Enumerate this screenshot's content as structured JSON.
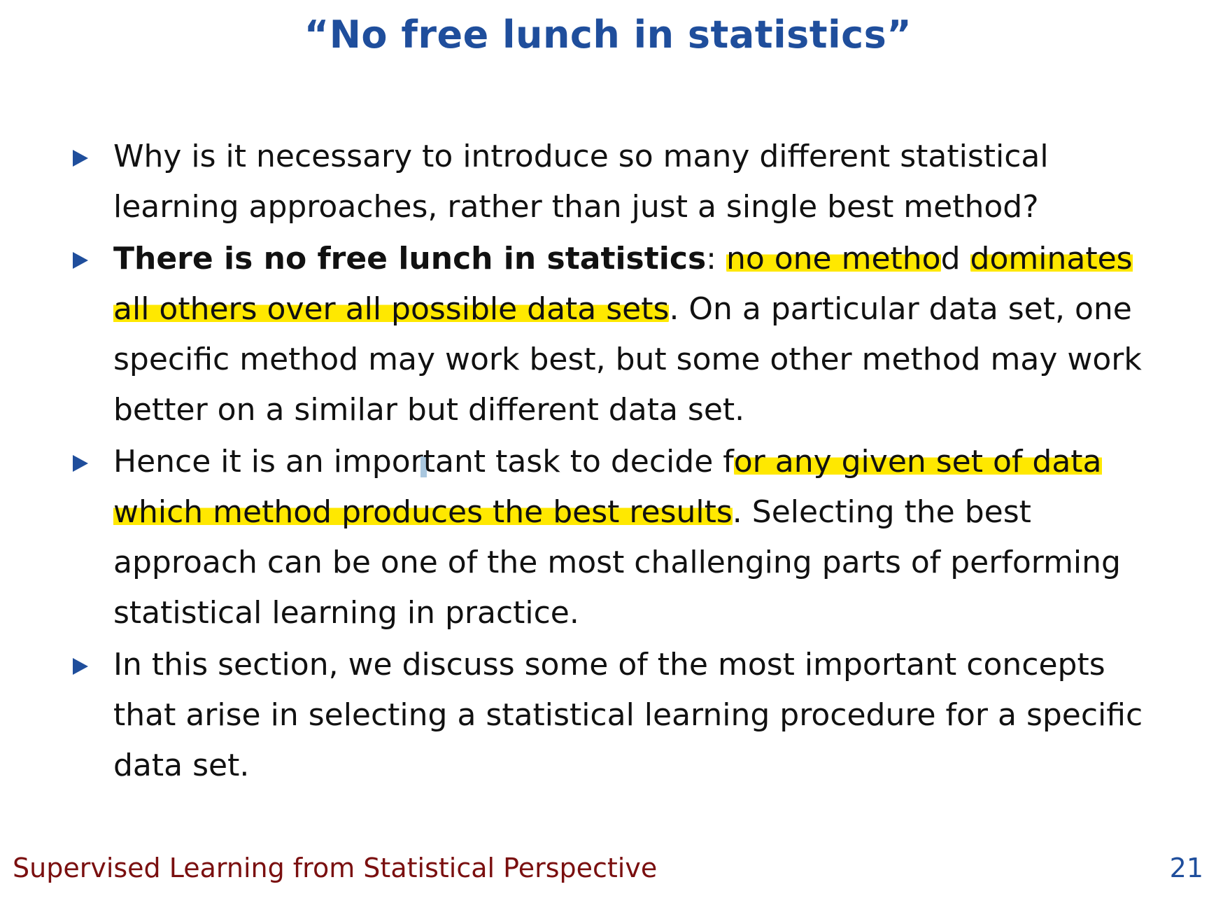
{
  "slide": {
    "title": "“No free lunch in statistics”",
    "bullets": [
      {
        "text": "Why is it necessary to introduce so many different statistical learning approaches, rather than just a single best method?"
      },
      {
        "bold": "There is no free lunch in statistics",
        "colon": ": ",
        "highlight1": "no one metho",
        "after_h1": "d ",
        "highlight2": "dominates all others over all possible data sets",
        "rest": ". On a particular data set, one specific method may work best, but some other method may work better on a similar but different data set."
      },
      {
        "before_cursor": "Hence it is an impor",
        "after_cursor": "tant task to decide f",
        "highlight": "or any given set of data which method produces the best results",
        "rest": ". Selecting the best approach can be one of the most challenging parts of performing statistical learning in practice."
      },
      {
        "text": "In this section, we discuss some of the most important concepts that arise in selecting a statistical learning procedure for a specific data set."
      }
    ]
  },
  "footer": {
    "title": "Supervised Learning from Statistical Perspective",
    "page_number": "21"
  },
  "colors": {
    "title": "#1f4e9c",
    "bullet_marker": "#1f4e9c",
    "highlight": "#ffe800",
    "footer_left": "#7a0f0f",
    "footer_right": "#1f4e9c"
  }
}
